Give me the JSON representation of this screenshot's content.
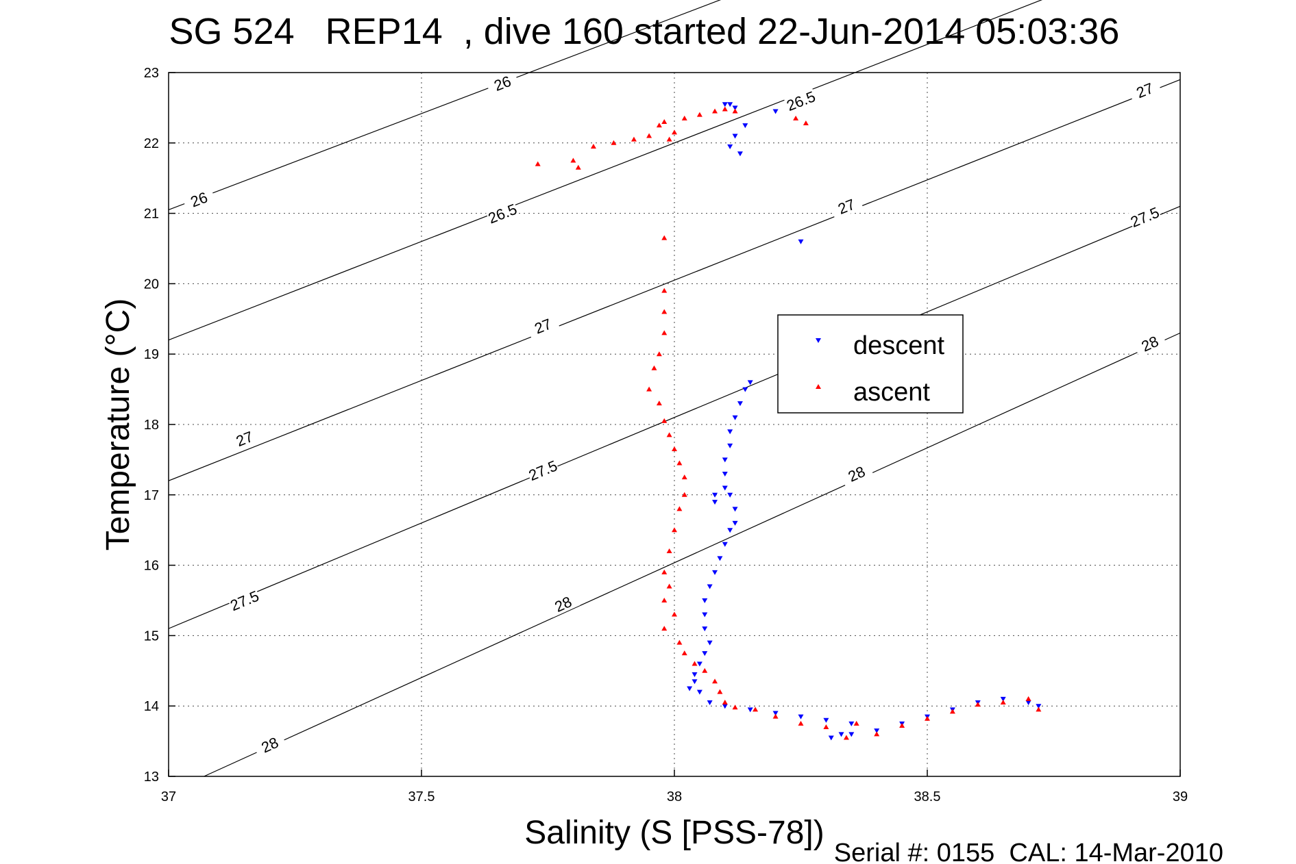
{
  "chart_data": {
    "type": "scatter",
    "title": "SG 524   REP14  , dive 160 started 22-Jun-2014 05:03:36",
    "xlabel": "Salinity (S [PSS-78])",
    "ylabel": "Temperature (°C)",
    "footer": "Serial #: 0155  CAL: 14-Mar-2010",
    "xlim": [
      37,
      39
    ],
    "ylim": [
      13,
      23
    ],
    "x_ticks": [
      "37",
      "37.5",
      "38",
      "38.5",
      "39"
    ],
    "y_ticks": [
      "13",
      "14",
      "15",
      "16",
      "17",
      "18",
      "19",
      "20",
      "21",
      "22",
      "23"
    ],
    "grid": true,
    "legend_position": "center-right",
    "isopycnals": [
      {
        "value": "26",
        "points": [
          [
            37,
            21.05
          ],
          [
            39,
            26.52
          ]
        ],
        "labels": [
          [
            37.06,
            21.2
          ],
          [
            37.66,
            22.85
          ]
        ]
      },
      {
        "value": "26.5",
        "points": [
          [
            37,
            19.2
          ],
          [
            39,
            24.8
          ]
        ],
        "labels": [
          [
            37.66,
            21.0
          ],
          [
            38.25,
            22.6
          ],
          [
            38.25,
            22.6
          ]
        ]
      },
      {
        "value": "27",
        "points": [
          [
            37,
            17.2
          ],
          [
            39,
            22.9
          ]
        ],
        "labels": [
          [
            37.15,
            17.8
          ],
          [
            37.74,
            19.4
          ],
          [
            38.34,
            21.1
          ],
          [
            38.93,
            22.75
          ]
        ]
      },
      {
        "value": "27.5",
        "points": [
          [
            37,
            15.1
          ],
          [
            39,
            21.1
          ]
        ],
        "labels": [
          [
            37.15,
            15.5
          ],
          [
            37.74,
            17.35
          ],
          [
            38.93,
            20.95
          ]
        ]
      },
      {
        "value": "28",
        "points": [
          [
            37.07,
            13
          ],
          [
            39,
            19.3
          ]
        ],
        "labels": [
          [
            37.2,
            13.45
          ],
          [
            37.78,
            15.45
          ],
          [
            38.36,
            17.3
          ],
          [
            38.94,
            19.15
          ]
        ]
      }
    ],
    "series": [
      {
        "name": "descent",
        "color": "#0000ff",
        "marker": "triangle-down",
        "points": [
          [
            38.1,
            22.55
          ],
          [
            38.11,
            22.55
          ],
          [
            38.12,
            22.5
          ],
          [
            38.2,
            22.45
          ],
          [
            38.14,
            22.25
          ],
          [
            38.12,
            22.1
          ],
          [
            38.11,
            21.95
          ],
          [
            38.13,
            21.85
          ],
          [
            38.25,
            20.6
          ],
          [
            38.15,
            18.6
          ],
          [
            38.14,
            18.5
          ],
          [
            38.13,
            18.3
          ],
          [
            38.12,
            18.1
          ],
          [
            38.11,
            17.9
          ],
          [
            38.11,
            17.7
          ],
          [
            38.1,
            17.5
          ],
          [
            38.1,
            17.3
          ],
          [
            38.1,
            17.1
          ],
          [
            38.08,
            17.0
          ],
          [
            38.08,
            16.9
          ],
          [
            38.11,
            17.0
          ],
          [
            38.12,
            16.8
          ],
          [
            38.12,
            16.6
          ],
          [
            38.11,
            16.5
          ],
          [
            38.1,
            16.3
          ],
          [
            38.09,
            16.1
          ],
          [
            38.08,
            15.9
          ],
          [
            38.07,
            15.7
          ],
          [
            38.06,
            15.5
          ],
          [
            38.06,
            15.3
          ],
          [
            38.06,
            15.1
          ],
          [
            38.07,
            14.9
          ],
          [
            38.06,
            14.75
          ],
          [
            38.05,
            14.6
          ],
          [
            38.04,
            14.45
          ],
          [
            38.04,
            14.35
          ],
          [
            38.03,
            14.25
          ],
          [
            38.05,
            14.2
          ],
          [
            38.07,
            14.05
          ],
          [
            38.1,
            14.0
          ],
          [
            38.15,
            13.95
          ],
          [
            38.2,
            13.9
          ],
          [
            38.25,
            13.85
          ],
          [
            38.3,
            13.8
          ],
          [
            38.35,
            13.75
          ],
          [
            38.33,
            13.6
          ],
          [
            38.31,
            13.55
          ],
          [
            38.35,
            13.6
          ],
          [
            38.4,
            13.65
          ],
          [
            38.45,
            13.75
          ],
          [
            38.5,
            13.85
          ],
          [
            38.55,
            13.95
          ],
          [
            38.6,
            14.05
          ],
          [
            38.65,
            14.1
          ],
          [
            38.7,
            14.05
          ],
          [
            38.72,
            14.0
          ]
        ]
      },
      {
        "name": "ascent",
        "color": "#ff0000",
        "marker": "triangle-up",
        "points": [
          [
            37.73,
            21.7
          ],
          [
            37.8,
            21.75
          ],
          [
            37.81,
            21.65
          ],
          [
            37.84,
            21.95
          ],
          [
            37.88,
            22.0
          ],
          [
            37.92,
            22.05
          ],
          [
            37.95,
            22.1
          ],
          [
            37.97,
            22.25
          ],
          [
            37.98,
            22.3
          ],
          [
            37.99,
            22.05
          ],
          [
            38.0,
            22.15
          ],
          [
            38.02,
            22.35
          ],
          [
            38.05,
            22.4
          ],
          [
            38.08,
            22.45
          ],
          [
            38.1,
            22.48
          ],
          [
            38.12,
            22.45
          ],
          [
            38.24,
            22.35
          ],
          [
            38.26,
            22.28
          ],
          [
            37.98,
            20.65
          ],
          [
            37.98,
            19.9
          ],
          [
            37.98,
            19.6
          ],
          [
            37.98,
            19.3
          ],
          [
            37.97,
            19.0
          ],
          [
            37.96,
            18.8
          ],
          [
            37.95,
            18.5
          ],
          [
            37.97,
            18.3
          ],
          [
            37.98,
            18.05
          ],
          [
            37.99,
            17.85
          ],
          [
            38.0,
            17.65
          ],
          [
            38.01,
            17.45
          ],
          [
            38.02,
            17.25
          ],
          [
            38.02,
            17.0
          ],
          [
            38.01,
            16.8
          ],
          [
            38.0,
            16.5
          ],
          [
            37.99,
            16.2
          ],
          [
            37.98,
            15.9
          ],
          [
            37.99,
            15.7
          ],
          [
            37.98,
            15.5
          ],
          [
            38.0,
            15.3
          ],
          [
            37.98,
            15.1
          ],
          [
            38.01,
            14.9
          ],
          [
            38.02,
            14.75
          ],
          [
            38.04,
            14.6
          ],
          [
            38.06,
            14.5
          ],
          [
            38.08,
            14.35
          ],
          [
            38.09,
            14.2
          ],
          [
            38.1,
            14.05
          ],
          [
            38.12,
            13.98
          ],
          [
            38.16,
            13.95
          ],
          [
            38.2,
            13.85
          ],
          [
            38.25,
            13.75
          ],
          [
            38.3,
            13.7
          ],
          [
            38.36,
            13.75
          ],
          [
            38.34,
            13.55
          ],
          [
            38.4,
            13.6
          ],
          [
            38.45,
            13.72
          ],
          [
            38.5,
            13.82
          ],
          [
            38.55,
            13.92
          ],
          [
            38.6,
            14.02
          ],
          [
            38.65,
            14.05
          ],
          [
            38.7,
            14.1
          ],
          [
            38.72,
            13.95
          ]
        ]
      }
    ]
  }
}
